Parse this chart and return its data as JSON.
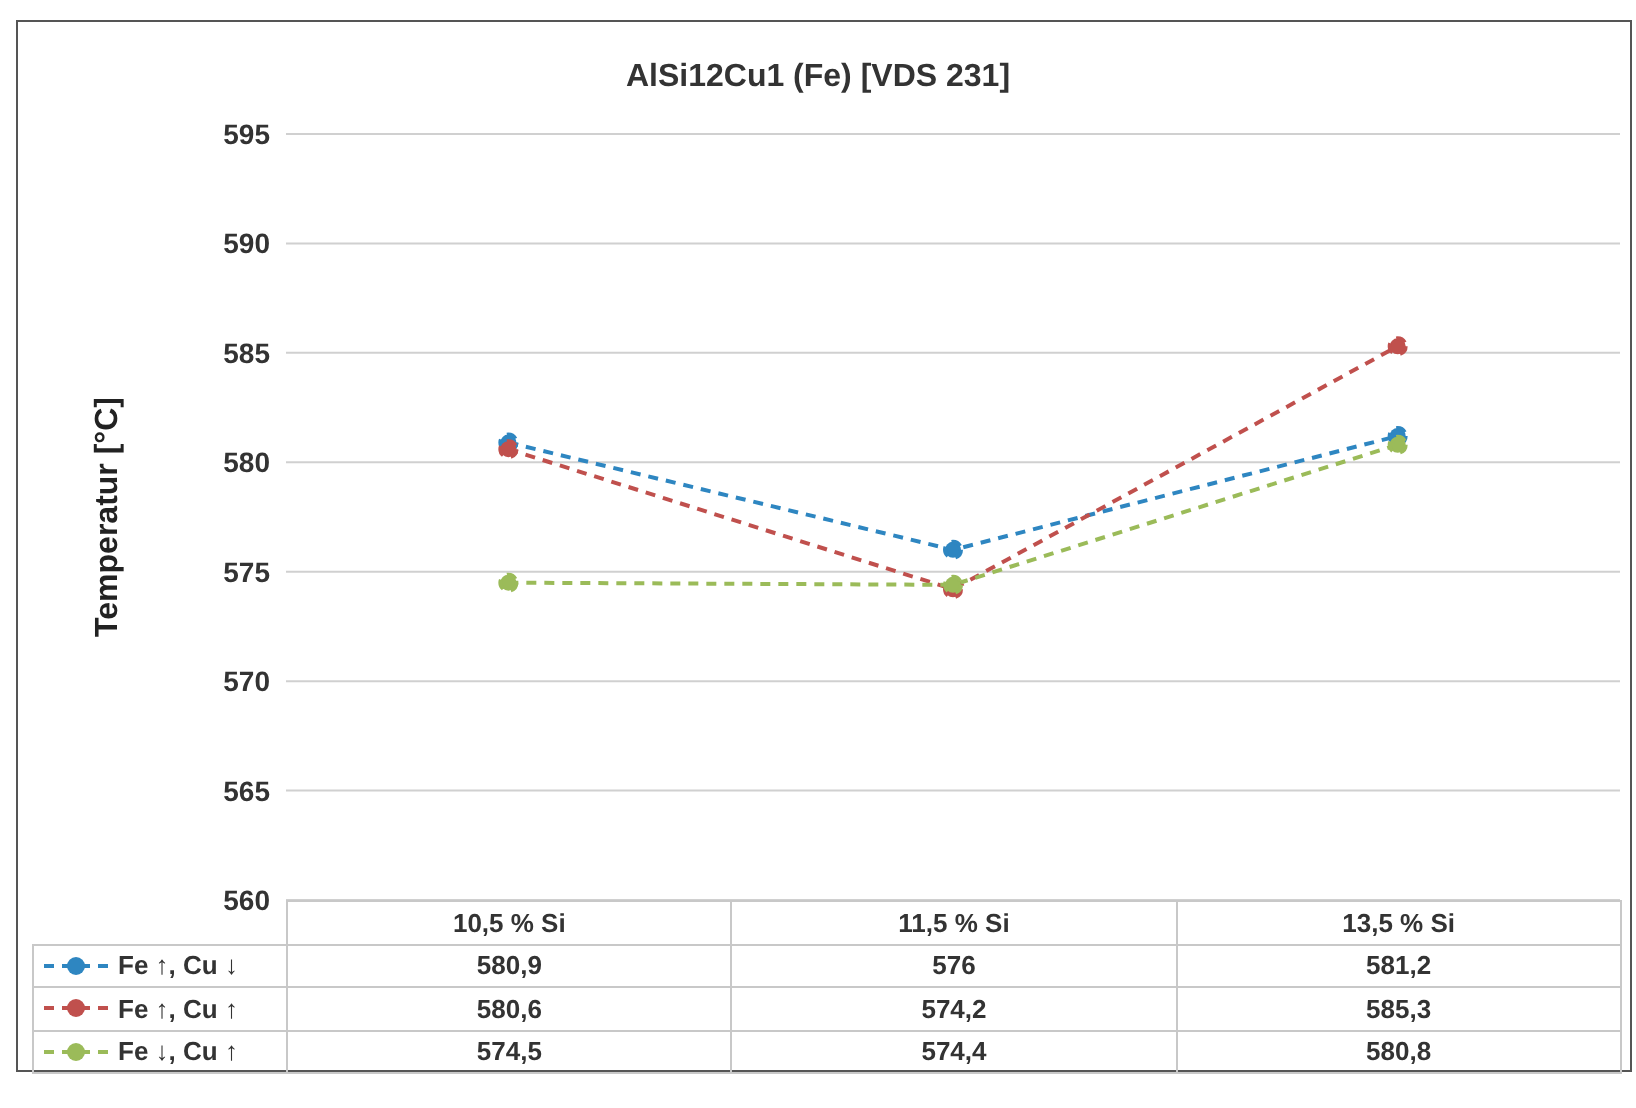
{
  "chart_data": {
    "type": "line",
    "title": "AlSi12Cu1 (Fe) [VDS 231]",
    "ylabel": "Temperatur [°C]",
    "categories": [
      "10,5 % Si",
      "11,5 % Si",
      "13,5 % Si"
    ],
    "series": [
      {
        "name": "Fe ↑, Cu ↓",
        "color": "#2e86c1",
        "values": [
          580.9,
          576,
          581.2
        ],
        "value_labels": [
          "580,9",
          "576",
          "581,2"
        ]
      },
      {
        "name": "Fe ↑, Cu ↑",
        "color": "#c0504d",
        "values": [
          580.6,
          574.2,
          585.3
        ],
        "value_labels": [
          "580,6",
          "574,2",
          "585,3"
        ]
      },
      {
        "name": "Fe ↓, Cu ↑",
        "color": "#9bbb59",
        "values": [
          574.5,
          574.4,
          580.8
        ],
        "value_labels": [
          "574,5",
          "574,4",
          "580,8"
        ]
      }
    ],
    "ylim": [
      560,
      595
    ],
    "yticks": [
      560,
      565,
      570,
      575,
      580,
      585,
      590,
      595
    ],
    "grid": "y",
    "marker": "circle",
    "line_style": "dashed",
    "legend": "bottom left"
  }
}
